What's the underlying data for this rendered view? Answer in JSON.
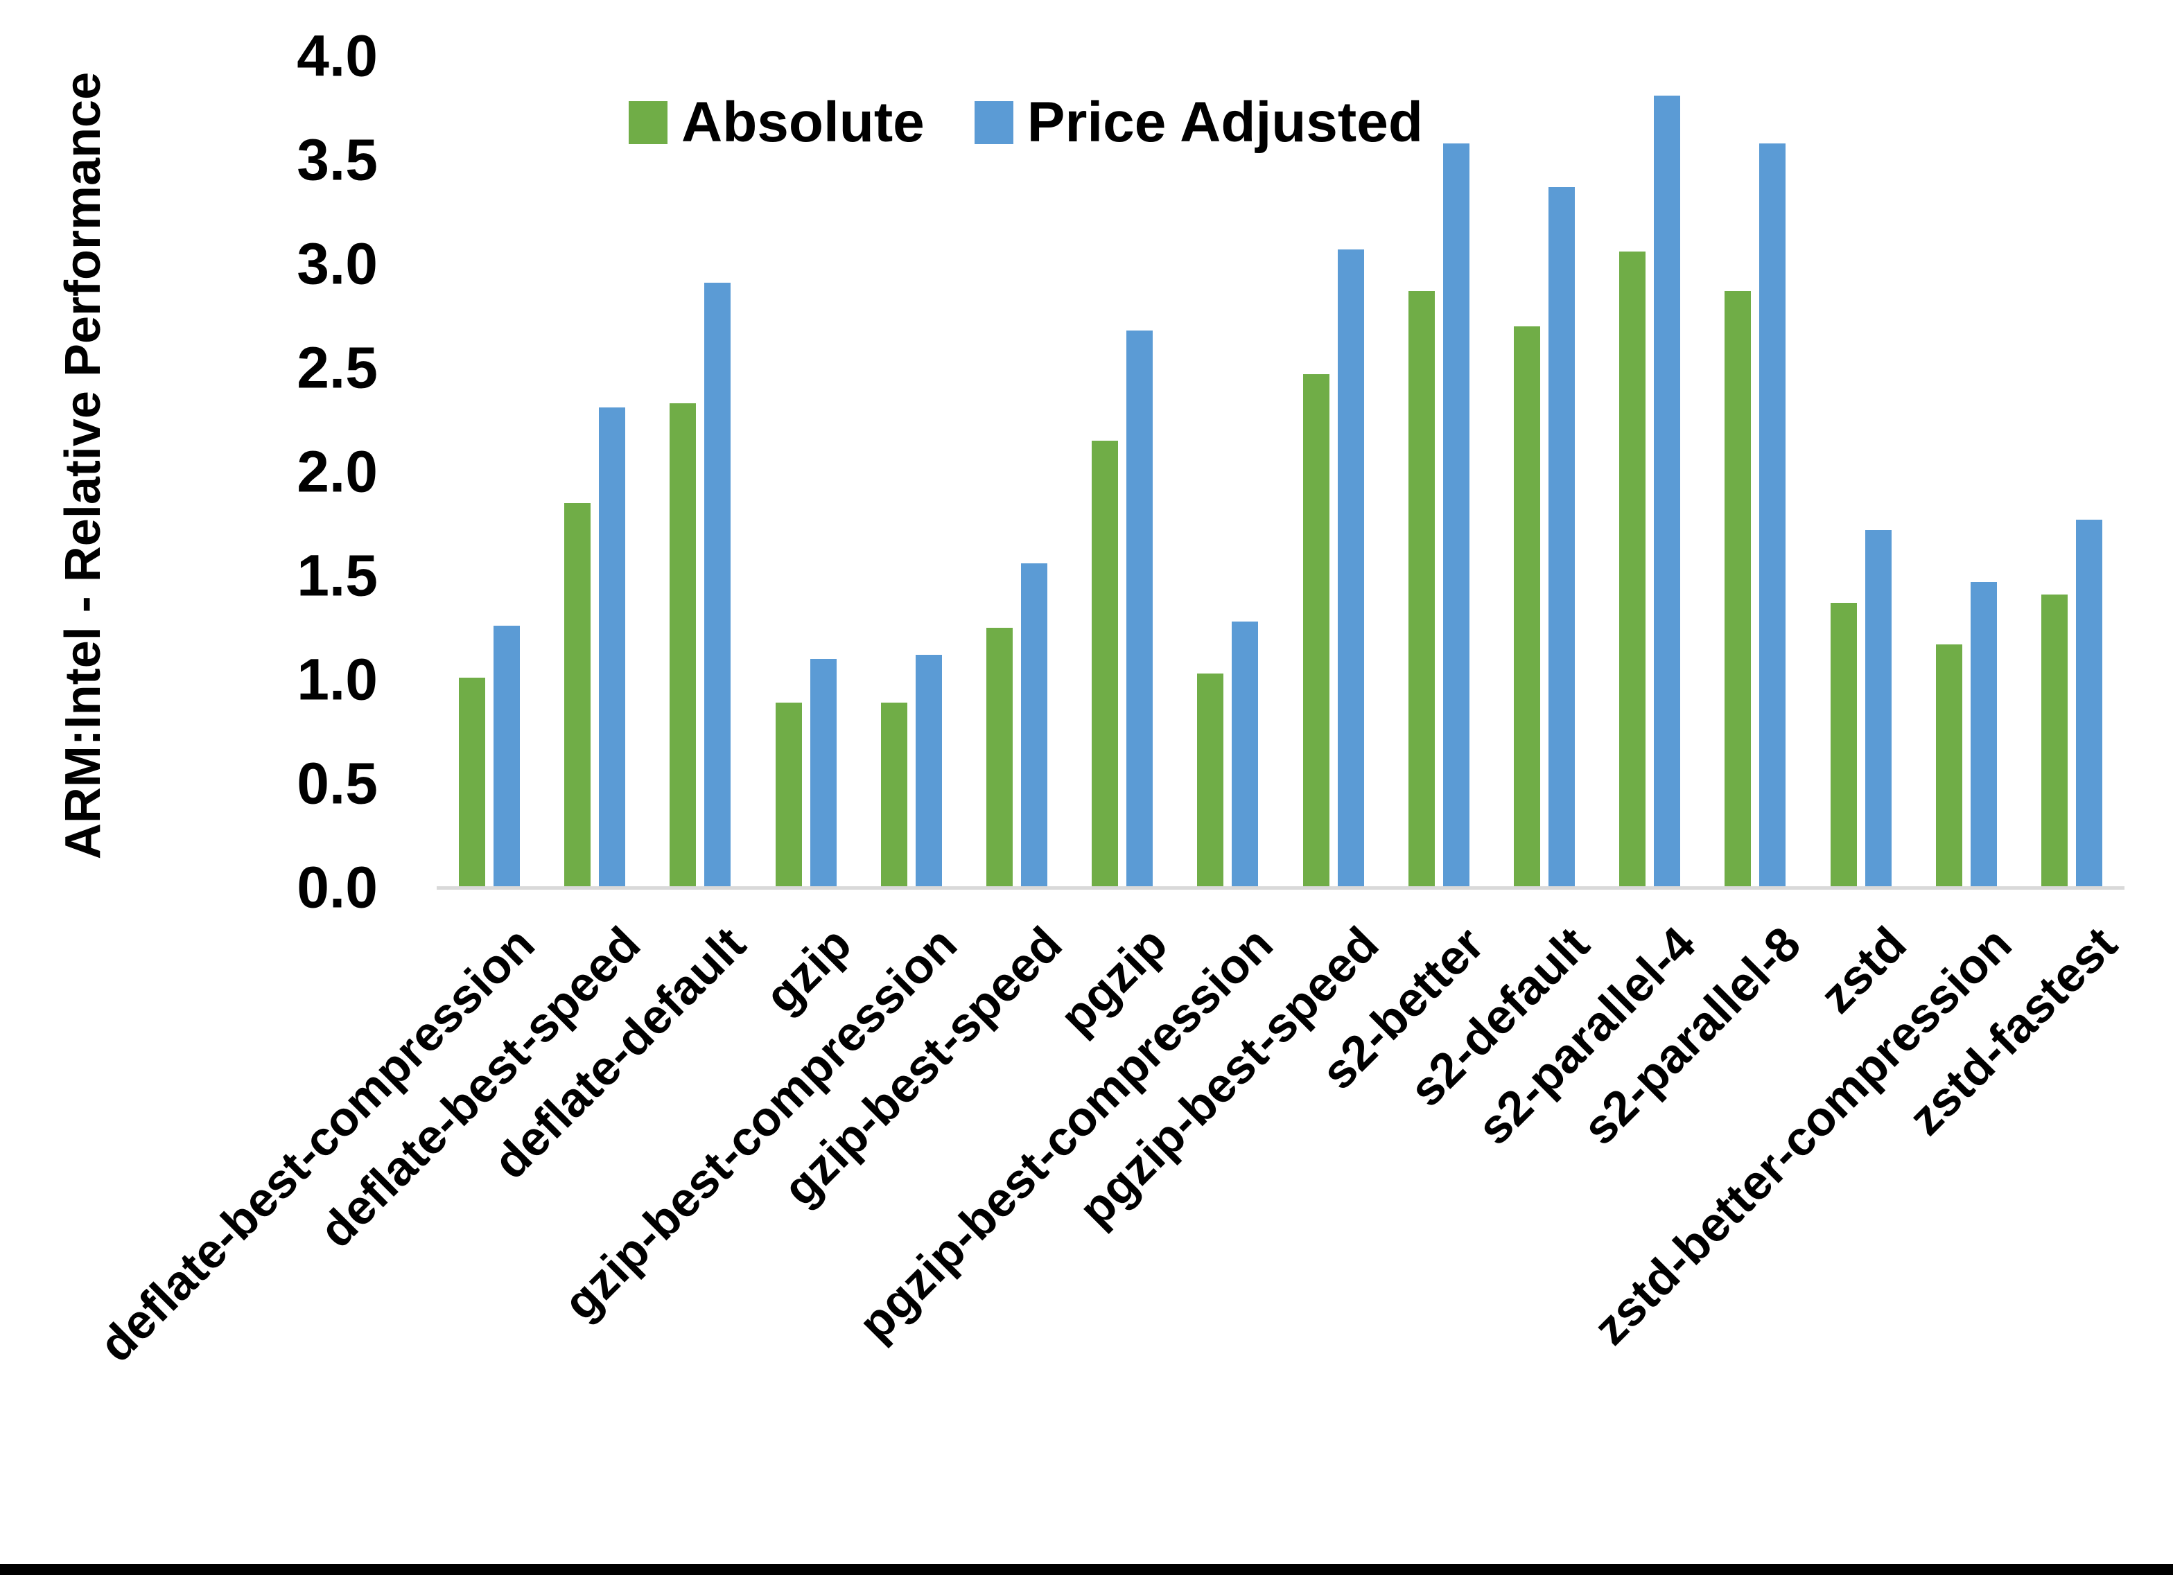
{
  "chart_data": {
    "type": "bar",
    "title": "",
    "xlabel": "",
    "ylabel": "ARM:Intel - Relative Performance",
    "ylim": [
      0.0,
      4.0
    ],
    "y_tick_step": 0.5,
    "y_tick_labels": [
      "0.0",
      "0.5",
      "1.0",
      "1.5",
      "2.0",
      "2.5",
      "3.0",
      "3.5",
      "4.0"
    ],
    "grid": false,
    "legend_position": "top",
    "categories": [
      "deflate-best-compression",
      "deflate-best-speed",
      "deflate-default",
      "gzip",
      "gzip-best-compression",
      "gzip-best-speed",
      "pgzip",
      "pgzip-best-compression",
      "pgzip-best-speed",
      "s2-better",
      "s2-default",
      "s2-parallel-4",
      "s2-parallel-8",
      "zstd",
      "zstd-better-compression",
      "zstd-fastest"
    ],
    "series": [
      {
        "name": "Absolute",
        "color": "#70AD47",
        "values": [
          1.01,
          1.85,
          2.33,
          0.89,
          0.89,
          1.25,
          2.15,
          1.03,
          2.47,
          2.87,
          2.7,
          3.06,
          2.87,
          1.37,
          1.17,
          1.41
        ]
      },
      {
        "name": "Price Adjusted",
        "color": "#5B9BD5",
        "values": [
          1.26,
          2.31,
          2.91,
          1.1,
          1.12,
          1.56,
          2.68,
          1.28,
          3.07,
          3.58,
          3.37,
          3.81,
          3.58,
          1.72,
          1.47,
          1.77
        ]
      }
    ],
    "colors": {
      "axis_line": "#D9D9D9",
      "text": "#000000",
      "background": "#FFFFFF",
      "bottom_border": "#000000"
    }
  }
}
